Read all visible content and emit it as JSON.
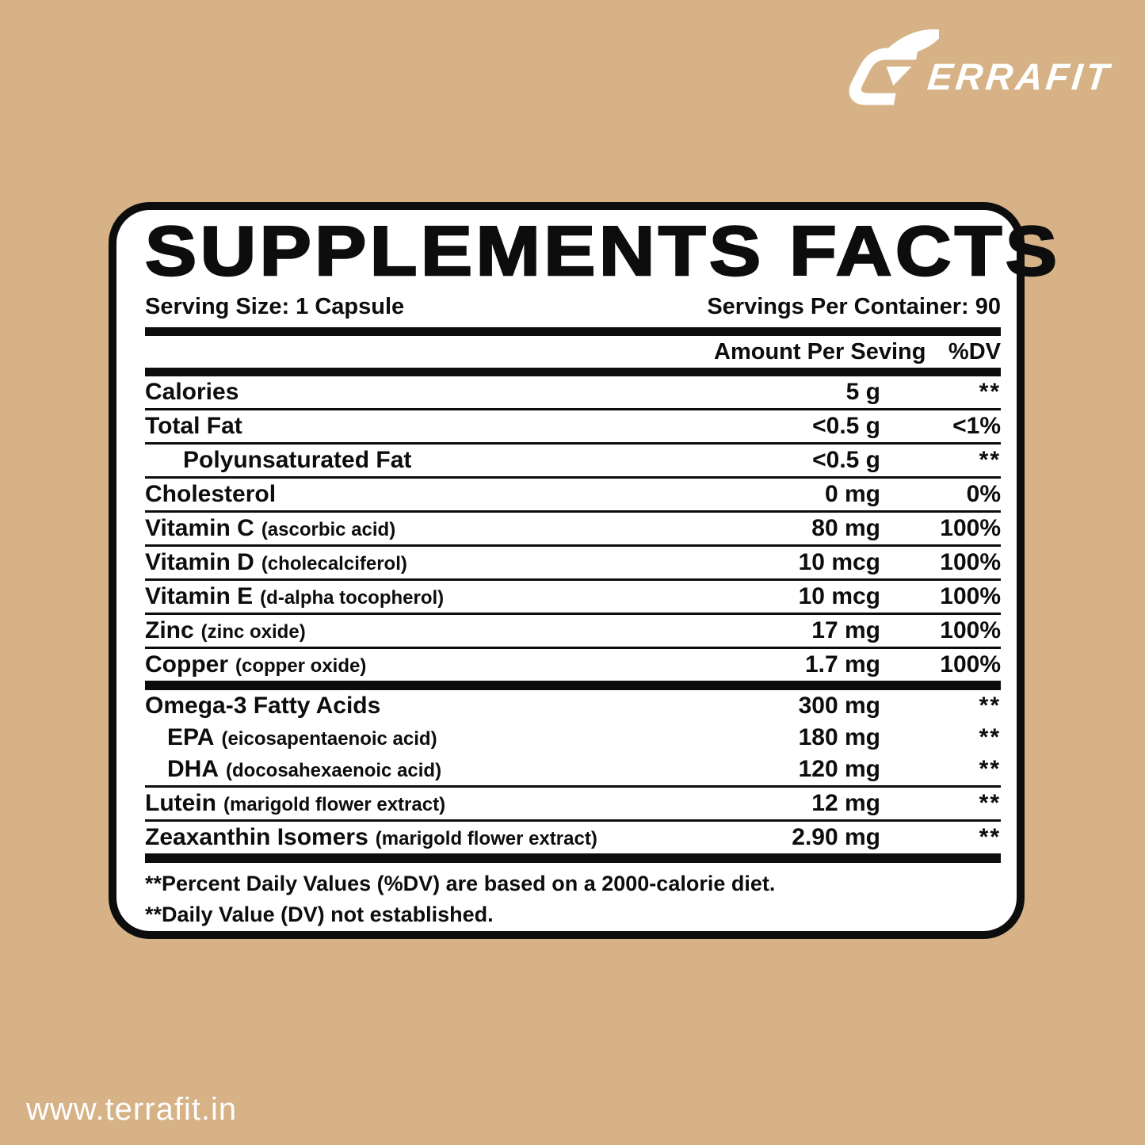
{
  "brand": {
    "logo_text": "ERRAFIT",
    "logo_icon": "terrafit-t-swoosh-icon",
    "website": "www.terrafit.in"
  },
  "panel": {
    "title": "SUPPLEMENTS FACTS",
    "serving_size": "Serving Size: 1 Capsule",
    "servings_per_container": "Servings Per Container: 90",
    "columns": {
      "amount": "Amount Per Seving",
      "dv": "%DV"
    },
    "rows": [
      {
        "label": "Calories",
        "sub": "",
        "amount": "5 g",
        "dv": "**",
        "indent": 0,
        "sep": "thin"
      },
      {
        "label": "Total Fat",
        "sub": "",
        "amount": "<0.5 g",
        "dv": "<1%",
        "indent": 0,
        "sep": "thin"
      },
      {
        "label": "Polyunsaturated Fat",
        "sub": "",
        "amount": "<0.5 g",
        "dv": "**",
        "indent": 1,
        "sep": "thin"
      },
      {
        "label": "Cholesterol",
        "sub": "",
        "amount": "0 mg",
        "dv": "0%",
        "indent": 0,
        "sep": "thin"
      },
      {
        "label": "Vitamin C",
        "sub": "(ascorbic acid)",
        "amount": "80 mg",
        "dv": "100%",
        "indent": 0,
        "sep": "thin"
      },
      {
        "label": "Vitamin D",
        "sub": "(cholecalciferol)",
        "amount": "10 mcg",
        "dv": "100%",
        "indent": 0,
        "sep": "thin"
      },
      {
        "label": "Vitamin E",
        "sub": "(d-alpha tocopherol)",
        "amount": "10 mcg",
        "dv": "100%",
        "indent": 0,
        "sep": "thin"
      },
      {
        "label": "Zinc",
        "sub": "(zinc oxide)",
        "amount": "17 mg",
        "dv": "100%",
        "indent": 0,
        "sep": "thin"
      },
      {
        "label": "Copper",
        "sub": "(copper oxide)",
        "amount": "1.7 mg",
        "dv": "100%",
        "indent": 0,
        "sep": "thick"
      },
      {
        "label": "Omega-3 Fatty Acids",
        "sub": "",
        "amount": "300 mg",
        "dv": "**",
        "indent": 0,
        "sep": "none"
      },
      {
        "label": "EPA",
        "sub": "(eicosapentaenoic acid)",
        "amount": "180 mg",
        "dv": "**",
        "indent": 0.5,
        "sep": "none"
      },
      {
        "label": "DHA",
        "sub": "(docosahexaenoic acid)",
        "amount": "120 mg",
        "dv": "**",
        "indent": 0.5,
        "sep": "thin"
      },
      {
        "label": "Lutein",
        "sub": "(marigold flower extract)",
        "amount": "12 mg",
        "dv": "**",
        "indent": 0,
        "sep": "thin"
      },
      {
        "label": "Zeaxanthin Isomers",
        "sub": "(marigold flower extract)",
        "amount": "2.90 mg",
        "dv": "**",
        "indent": 0,
        "sep": "thick"
      }
    ],
    "footnotes": [
      "**Percent Daily Values (%DV) are based on a 2000-calorie diet.",
      "**Daily Value (DV) not established."
    ]
  },
  "colors": {
    "background": "#D6B286",
    "panel_background": "#FFFFFF",
    "ink": "#0D0D0D",
    "logo": "#FFFFFF"
  }
}
